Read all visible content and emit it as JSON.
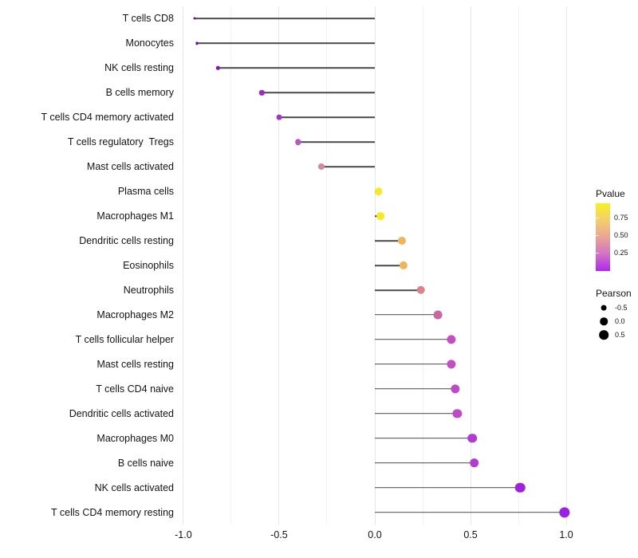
{
  "chart_data": {
    "type": "scatter",
    "subtype": "lollipop",
    "title": "",
    "xlabel": "",
    "ylabel": "",
    "x_axis": {
      "ticks": [
        -1.0,
        -0.5,
        0.0,
        0.5,
        1.0
      ],
      "tick_labels": [
        "-1.0",
        "-0.5",
        "0.0",
        "0.5",
        "1.0"
      ],
      "minor_ticks": [
        -0.75,
        -0.25,
        0.25,
        0.75
      ],
      "range": [
        -1.033,
        1.033
      ]
    },
    "grid": "vertical-only",
    "legend_position": "right",
    "points": [
      {
        "label": "T cells CD8",
        "pearson": -0.94,
        "color": "#7209B5"
      },
      {
        "label": "Monocytes",
        "pearson": -0.93,
        "color": "#7209B5"
      },
      {
        "label": "NK cells resting",
        "pearson": -0.82,
        "color": "#8812C2"
      },
      {
        "label": "B cells memory",
        "pearson": -0.59,
        "color": "#9C2BC8"
      },
      {
        "label": "T cells CD4 memory activated",
        "pearson": -0.5,
        "color": "#A335CB"
      },
      {
        "label": "T cells regulatory  Tregs",
        "pearson": -0.4,
        "color": "#BC55C4"
      },
      {
        "label": "Mast cells activated",
        "pearson": -0.28,
        "color": "#D487A0"
      },
      {
        "label": "Plasma cells",
        "pearson": 0.02,
        "color": "#F8E921"
      },
      {
        "label": "Macrophages M1",
        "pearson": 0.03,
        "color": "#F8E921"
      },
      {
        "label": "Dendritic cells resting",
        "pearson": 0.14,
        "color": "#EFB45C"
      },
      {
        "label": "Eosinophils",
        "pearson": 0.15,
        "color": "#EFB45C"
      },
      {
        "label": "Neutrophils",
        "pearson": 0.24,
        "color": "#DC8388"
      },
      {
        "label": "Macrophages M2",
        "pearson": 0.33,
        "color": "#CB66A4"
      },
      {
        "label": "T cells follicular helper",
        "pearson": 0.4,
        "color": "#C44FC4"
      },
      {
        "label": "Mast cells resting",
        "pearson": 0.4,
        "color": "#C44FC4"
      },
      {
        "label": "T cells CD4 naive",
        "pearson": 0.42,
        "color": "#BE4AC8"
      },
      {
        "label": "Dendritic cells activated",
        "pearson": 0.43,
        "color": "#BE4AC8"
      },
      {
        "label": "Macrophages M0",
        "pearson": 0.51,
        "color": "#B23BD2"
      },
      {
        "label": "B cells naive",
        "pearson": 0.52,
        "color": "#B23BD2"
      },
      {
        "label": "NK cells activated",
        "pearson": 0.76,
        "color": "#A222DC"
      },
      {
        "label": "T cells CD4 memory resting",
        "pearson": 0.99,
        "color": "#9A20E5"
      }
    ]
  },
  "legends": {
    "pvalue": {
      "title": "Pvalue",
      "tick_labels": [
        "0.75",
        "0.50",
        "0.25"
      ],
      "gradient_top_to_bottom": [
        "#F8F11E",
        "#F3CE6E",
        "#EAA495",
        "#D272C4",
        "#AE29EC"
      ]
    },
    "pearson": {
      "title": "Pearson",
      "entries": [
        {
          "label": "-0.5",
          "value": -0.5
        },
        {
          "label": "0.0",
          "value": 0.0
        },
        {
          "label": "0.5",
          "value": 0.5
        }
      ],
      "dot_color": "#000000"
    }
  },
  "colors": {
    "background": "#ffffff",
    "stem": "#4a4a4a",
    "grid_major": "#e7e7e7",
    "grid_minor": "#f2f2f2",
    "axis_text": "#141414"
  }
}
